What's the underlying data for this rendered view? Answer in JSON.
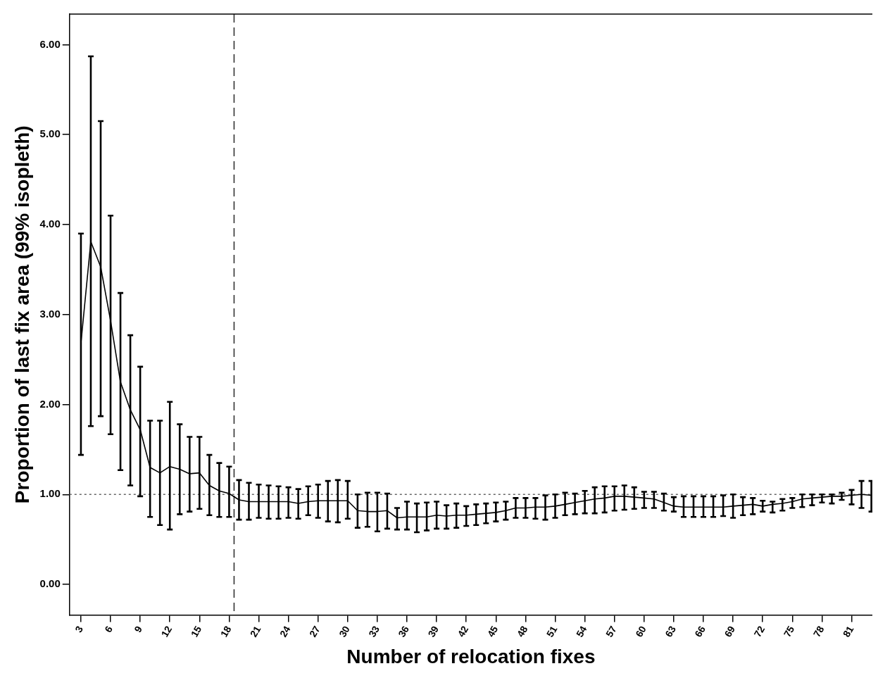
{
  "chart_data": {
    "type": "line",
    "xlabel": "Number of relocation fixes",
    "ylabel": "Proportion of last fix area (99% isopleth)",
    "x": [
      3,
      4,
      5,
      6,
      7,
      8,
      9,
      10,
      11,
      12,
      13,
      14,
      15,
      16,
      17,
      18,
      19,
      20,
      21,
      22,
      23,
      24,
      25,
      26,
      27,
      28,
      29,
      30,
      31,
      32,
      33,
      34,
      35,
      36,
      37,
      38,
      39,
      40,
      41,
      42,
      43,
      44,
      45,
      46,
      47,
      48,
      49,
      50,
      51,
      52,
      53,
      54,
      55,
      56,
      57,
      58,
      59,
      60,
      61,
      62,
      63,
      64,
      65,
      66,
      67,
      68,
      69,
      70,
      71,
      72,
      73,
      74,
      75,
      76,
      77,
      78,
      79,
      80,
      81,
      82,
      83
    ],
    "series": [
      {
        "color": "#000000",
        "values": [
          2.68,
          3.81,
          3.53,
          2.93,
          2.25,
          1.94,
          1.72,
          1.3,
          1.24,
          1.31,
          1.28,
          1.23,
          1.24,
          1.1,
          1.04,
          1.01,
          0.94,
          0.92,
          0.92,
          0.92,
          0.92,
          0.92,
          0.9,
          0.92,
          0.93,
          0.93,
          0.93,
          0.93,
          0.82,
          0.81,
          0.81,
          0.82,
          0.74,
          0.75,
          0.75,
          0.75,
          0.77,
          0.76,
          0.77,
          0.77,
          0.78,
          0.79,
          0.8,
          0.82,
          0.85,
          0.85,
          0.86,
          0.86,
          0.87,
          0.89,
          0.91,
          0.93,
          0.95,
          0.96,
          0.98,
          0.98,
          0.97,
          0.96,
          0.95,
          0.91,
          0.87,
          0.86,
          0.86,
          0.86,
          0.86,
          0.86,
          0.87,
          0.88,
          0.89,
          0.87,
          0.89,
          0.9,
          0.92,
          0.95,
          0.96,
          0.97,
          0.98,
          0.98,
          0.99,
          1.0,
          0.99
        ],
        "errors": [
          [
            1.44,
            3.9
          ],
          [
            1.76,
            5.87
          ],
          [
            1.87,
            5.15
          ],
          [
            1.67,
            4.1
          ],
          [
            1.27,
            3.24
          ],
          [
            1.1,
            2.77
          ],
          [
            0.98,
            2.42
          ],
          [
            0.75,
            1.82
          ],
          [
            0.66,
            1.82
          ],
          [
            0.61,
            2.03
          ],
          [
            0.78,
            1.78
          ],
          [
            0.81,
            1.64
          ],
          [
            0.84,
            1.64
          ],
          [
            0.77,
            1.44
          ],
          [
            0.75,
            1.35
          ],
          [
            0.75,
            1.31
          ],
          [
            0.72,
            1.16
          ],
          [
            0.72,
            1.13
          ],
          [
            0.74,
            1.11
          ],
          [
            0.73,
            1.1
          ],
          [
            0.73,
            1.09
          ],
          [
            0.74,
            1.08
          ],
          [
            0.73,
            1.06
          ],
          [
            0.77,
            1.09
          ],
          [
            0.74,
            1.11
          ],
          [
            0.7,
            1.15
          ],
          [
            0.69,
            1.16
          ],
          [
            0.73,
            1.15
          ],
          [
            0.63,
            1.0
          ],
          [
            0.64,
            1.02
          ],
          [
            0.59,
            1.02
          ],
          [
            0.62,
            1.01
          ],
          [
            0.61,
            0.85
          ],
          [
            0.61,
            0.92
          ],
          [
            0.58,
            0.9
          ],
          [
            0.6,
            0.91
          ],
          [
            0.62,
            0.92
          ],
          [
            0.62,
            0.88
          ],
          [
            0.63,
            0.9
          ],
          [
            0.65,
            0.87
          ],
          [
            0.66,
            0.89
          ],
          [
            0.68,
            0.9
          ],
          [
            0.7,
            0.91
          ],
          [
            0.72,
            0.92
          ],
          [
            0.74,
            0.96
          ],
          [
            0.74,
            0.96
          ],
          [
            0.73,
            0.96
          ],
          [
            0.72,
            0.99
          ],
          [
            0.74,
            1.0
          ],
          [
            0.77,
            1.02
          ],
          [
            0.78,
            1.01
          ],
          [
            0.79,
            1.04
          ],
          [
            0.79,
            1.08
          ],
          [
            0.8,
            1.09
          ],
          [
            0.82,
            1.09
          ],
          [
            0.83,
            1.1
          ],
          [
            0.84,
            1.08
          ],
          [
            0.85,
            1.03
          ],
          [
            0.85,
            1.03
          ],
          [
            0.82,
            1.01
          ],
          [
            0.81,
            0.97
          ],
          [
            0.75,
            0.98
          ],
          [
            0.75,
            0.98
          ],
          [
            0.75,
            0.98
          ],
          [
            0.75,
            0.98
          ],
          [
            0.76,
            0.99
          ],
          [
            0.74,
            1.0
          ],
          [
            0.77,
            0.97
          ],
          [
            0.78,
            0.96
          ],
          [
            0.81,
            0.93
          ],
          [
            0.8,
            0.92
          ],
          [
            0.82,
            0.95
          ],
          [
            0.85,
            0.96
          ],
          [
            0.86,
            1.0
          ],
          [
            0.88,
            1.0
          ],
          [
            0.91,
            1.0
          ],
          [
            0.9,
            1.0
          ],
          [
            0.94,
            1.02
          ],
          [
            0.89,
            1.05
          ],
          [
            0.85,
            1.15
          ],
          [
            0.81,
            1.15
          ]
        ]
      }
    ],
    "xlim": [
      1.85,
      83.1
    ],
    "xticks": [
      3,
      6,
      9,
      12,
      15,
      18,
      21,
      24,
      27,
      30,
      33,
      36,
      39,
      42,
      45,
      48,
      51,
      54,
      57,
      60,
      63,
      66,
      69,
      72,
      75,
      78,
      81
    ],
    "ylim": [
      -0.34,
      6.34
    ],
    "yticks": [
      {
        "value": 0,
        "label": "0.00"
      },
      {
        "value": 1,
        "label": "1.00"
      },
      {
        "value": 2,
        "label": "2.00"
      },
      {
        "value": 3,
        "label": "3.00"
      },
      {
        "value": 4,
        "label": "4.00"
      },
      {
        "value": 5,
        "label": "5.00"
      },
      {
        "value": 6,
        "label": "6.00"
      }
    ],
    "ref_lines": [
      {
        "axis": "y",
        "value": 1,
        "color": "#666666",
        "line_style": "dotted"
      },
      {
        "axis": "x",
        "value": 18.5,
        "color": "#333333",
        "line_style": "dashed"
      }
    ],
    "grid": false,
    "legend": false,
    "marker": "none",
    "line_style": "solid"
  }
}
